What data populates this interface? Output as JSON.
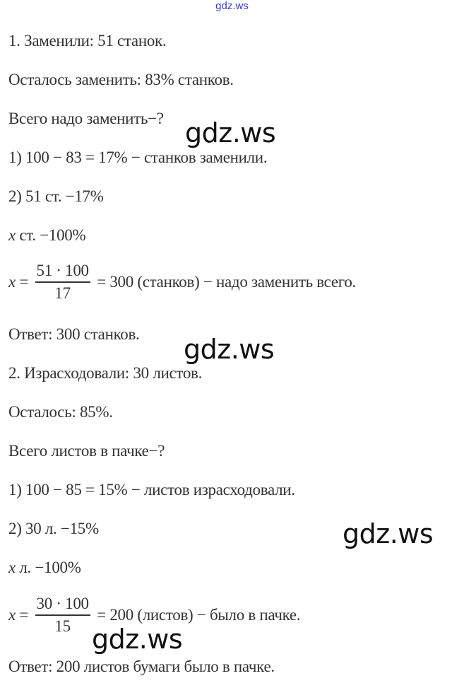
{
  "watermark": {
    "small": "gdz.ws",
    "large": "gdz.ws",
    "small_color": "#3a3ad8"
  },
  "task1": {
    "l1": "1. Заменили:  51 станок.",
    "l2": "Осталось заменить: 83% станков.",
    "l3": "Всего надо заменить−?",
    "l4": "1) 100 − 83 = 17% − станков заменили.",
    "l5": "2) 51 ст. −17%",
    "l6_var": "x",
    "l6": " ст. −100%",
    "f_var": "x",
    "f_eq": " = ",
    "f_num": "51 · 100",
    "f_den": "17",
    "f_rest": " = 300 (станков) − надо заменить всего.",
    "answer": "Ответ: 300 станков."
  },
  "task2": {
    "l1": "2. Израсходовали: 30 листов.",
    "l2": "Осталось: 85%.",
    "l3": "Всего листов в пачке−?",
    "l4": "1) 100 − 85 = 15% − листов израсходовали.",
    "l5": "2) 30 л. −15%",
    "l6_var": "x",
    "l6": " л. −100%",
    "f_var": "x",
    "f_eq": " = ",
    "f_num": "30 · 100",
    "f_den": "15",
    "f_rest": " = 200 (листов) − было в пачке.",
    "answer": "Ответ: 200 листов бумаги было в пачке."
  }
}
